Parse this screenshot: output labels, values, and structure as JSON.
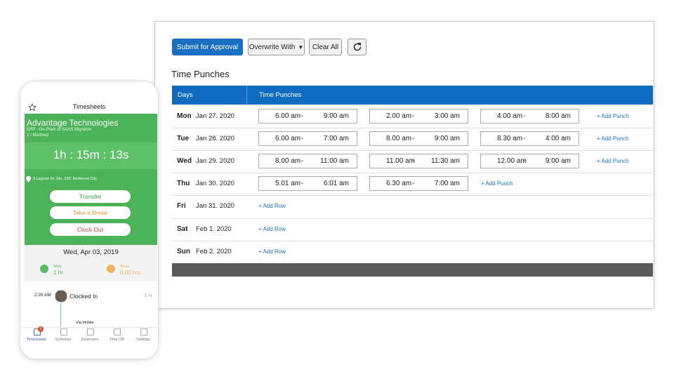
{
  "toolbar": {
    "submit": "Submit for Approval",
    "overwrite": "Overwrite With",
    "clear": "Clear All"
  },
  "section_title": "Time Punches",
  "table": {
    "headers": [
      "Days",
      "Time Punches"
    ],
    "punch_separator": "-",
    "rows": [
      {
        "day": "Mon",
        "date": "Jan 27. 2020",
        "punches": [
          [
            "6.00 am",
            "9:00 am"
          ],
          [
            "2.00 am",
            "3:00 am"
          ],
          [
            "4.00 am",
            "8:00 am"
          ]
        ],
        "action": "+ Add Punch"
      },
      {
        "day": "Tue",
        "date": "Jan 28. 2020",
        "punches": [
          [
            "6.00 am",
            "7:00 am"
          ],
          [
            "8.00 am",
            "9:00 am"
          ],
          [
            "8.30 am",
            "4:00 am"
          ]
        ],
        "action": "+ Add Punch"
      },
      {
        "day": "Wed",
        "date": "Jan 29. 2020",
        "punches": [
          [
            "8.00 am",
            "11:00 am"
          ],
          [
            "11.00 am",
            "11:30 am"
          ],
          [
            "12.00 am",
            "9:00 am"
          ]
        ],
        "action": "+ Add Punch"
      },
      {
        "day": "Thu",
        "date": "Jan 30. 2020",
        "punches": [
          [
            "5.01 am",
            "6:01 am"
          ],
          [
            "6.30 am",
            "7:00 am"
          ]
        ],
        "action": "+ Add Punch"
      },
      {
        "day": "Fri",
        "date": "Jan 31. 2020",
        "punches": [],
        "action": "+ Add Row"
      },
      {
        "day": "Sat",
        "date": "Feb 1. 2020",
        "punches": [],
        "action": "+ Add Row"
      },
      {
        "day": "Sun",
        "date": "Feb 2. 2020",
        "punches": [],
        "action": "+ Add Row"
      }
    ]
  },
  "phone": {
    "title": "Timesheets",
    "company": "Advantage Technologies",
    "project": "ERP - On-Prem to SAAS Migration",
    "task": "1 / Martinez",
    "timer": "1h : 15m : 13s",
    "location": "3 Lagoon Dr. Ste. 130, Redwood City",
    "buttons": [
      "Transfer",
      "Take a Break",
      "Clock Out"
    ],
    "date": "Wed, Apr 03, 2019",
    "work": {
      "label": "Work",
      "value": "1 hr"
    },
    "break": {
      "label": "Break",
      "value": "0.00 hrs"
    },
    "entry": {
      "time": "2:26 AM",
      "status": "Clocked In",
      "duration": "1 hr",
      "source": "Via Mobile"
    },
    "nav": [
      "Timesheets",
      "Schedule",
      "Expenses",
      "Time Off",
      "Settings"
    ],
    "badge": "2"
  }
}
